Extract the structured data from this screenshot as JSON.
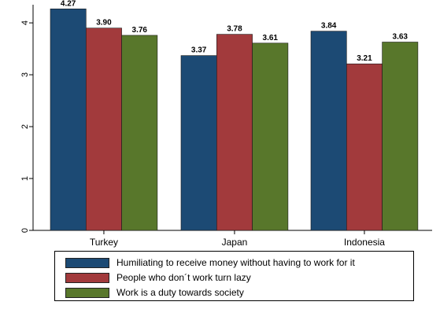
{
  "chart_data": {
    "type": "bar",
    "categories": [
      "Turkey",
      "Japan",
      "Indonesia"
    ],
    "series": [
      {
        "name": "Humiliating to receive money without having to work for it",
        "values": [
          4.27,
          3.37,
          3.84
        ],
        "labels": [
          "4.27",
          "3.37",
          "3.84"
        ],
        "color": "#1c4a74"
      },
      {
        "name": "People who don´t work turn lazy",
        "values": [
          3.9,
          3.78,
          3.21
        ],
        "labels": [
          "3.90",
          "3.78",
          "3.21"
        ],
        "color": "#a23a3c"
      },
      {
        "name": "Work is a duty towards society",
        "values": [
          3.76,
          3.61,
          3.63
        ],
        "labels": [
          "3.76",
          "3.61",
          "3.63"
        ],
        "color": "#58772b"
      }
    ],
    "ylim": [
      0,
      4.35
    ],
    "yticks": [
      "0",
      "1",
      "2",
      "3",
      "4"
    ],
    "title": "",
    "xlabel": "",
    "ylabel": "",
    "grid": false,
    "legend_position": "bottom"
  }
}
